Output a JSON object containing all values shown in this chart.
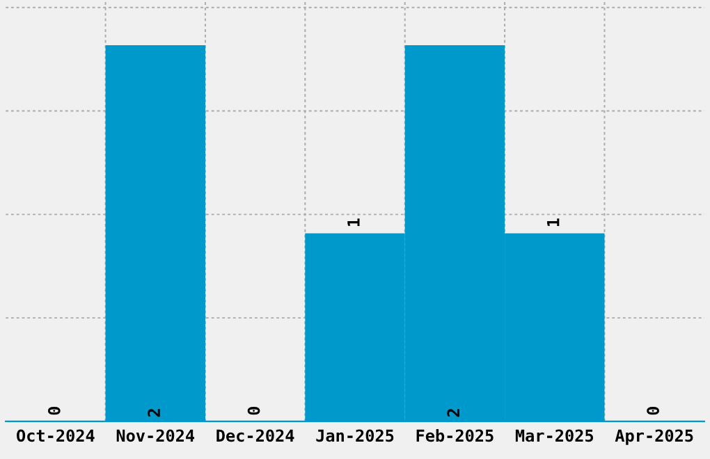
{
  "chart_data": {
    "type": "bar",
    "categories": [
      "Oct-2024",
      "Nov-2024",
      "Dec-2024",
      "Jan-2025",
      "Feb-2025",
      "Mar-2025",
      "Apr-2025"
    ],
    "values": [
      0,
      2,
      0,
      1,
      2,
      1,
      0
    ],
    "color": "#0099cc",
    "ylim": [
      0,
      2.24
    ],
    "yticks": [
      {
        "value": 0.55,
        "label": null
      },
      {
        "value": 1.1,
        "label": null
      },
      {
        "value": 1.65,
        "label": null
      },
      {
        "value": 2.2,
        "label": null
      }
    ],
    "tick_labels": "x",
    "grid": true,
    "data_labels": true
  }
}
